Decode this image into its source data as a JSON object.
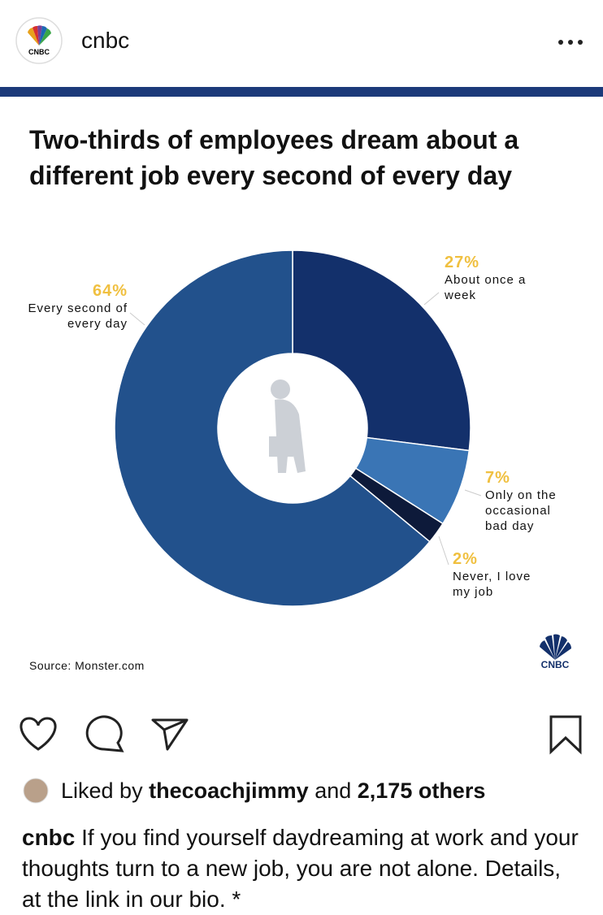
{
  "header": {
    "account": "cnbc",
    "logo_text": "CNBC"
  },
  "chart_data": {
    "type": "donut",
    "title": "Two-thirds of employees dream about a different job every second of every day",
    "categories": [
      "About once a week",
      "Only on the occasional bad day",
      "Never, I love my job",
      "Every second of every day"
    ],
    "values": [
      27,
      7,
      2,
      64
    ],
    "value_labels": [
      "27%",
      "7%",
      "2%",
      "64%"
    ],
    "colors": [
      "#13306b",
      "#3a75b5",
      "#0d1a3a",
      "#22518c"
    ],
    "label_color": "#f0c040",
    "source": "Source: Monster.com",
    "brand": "CNBC"
  },
  "footer": {
    "liked_prefix": "Liked by",
    "liked_user": "thecoachjimmy",
    "liked_and": "and",
    "liked_count": "2,175 others",
    "caption_user": "cnbc",
    "caption": "If you find yourself daydreaming at work and your thoughts turn to a new job, you are not alone. Details, at the link in our bio. *"
  }
}
